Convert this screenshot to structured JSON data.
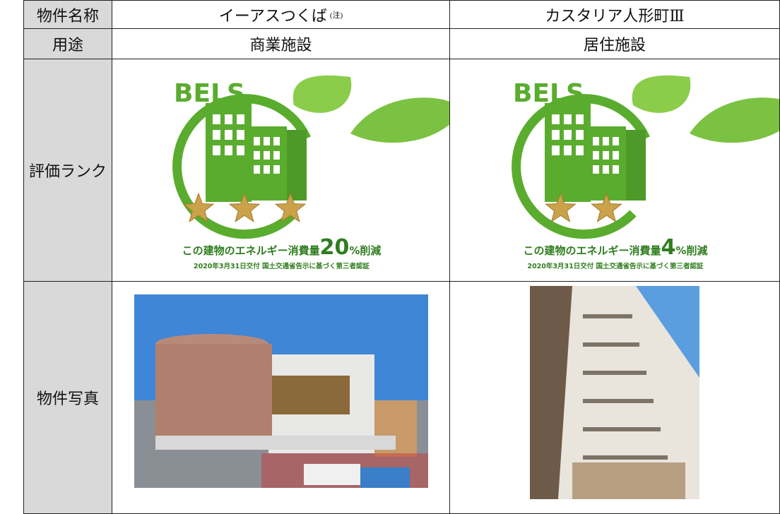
{
  "header": {
    "label": "物件名称",
    "properties": [
      {
        "name": "イーアスつくば",
        "note": "(注)"
      },
      {
        "name": "カスタリア人形町Ⅲ"
      }
    ]
  },
  "rows": [
    {
      "label": "用途",
      "values": [
        "商業施設",
        "居住施設"
      ]
    },
    {
      "label": "評価ランク",
      "badges": [
        {
          "brand": "BELS",
          "stars": 3,
          "caption": "この建物のエネルギー消費量",
          "reduction": 20,
          "unit": "%削減",
          "issue_note": "2020年3月31日交付 国土交通省告示に基づく第三者認証"
        },
        {
          "brand": "BELS",
          "stars": 2,
          "caption": "この建物のエネルギー消費量",
          "reduction": 4,
          "unit": "%削減",
          "issue_note": "2020年3月31日交付 国土交通省告示に基づく第三者認証"
        }
      ]
    },
    {
      "label": "物件写真"
    }
  ]
}
